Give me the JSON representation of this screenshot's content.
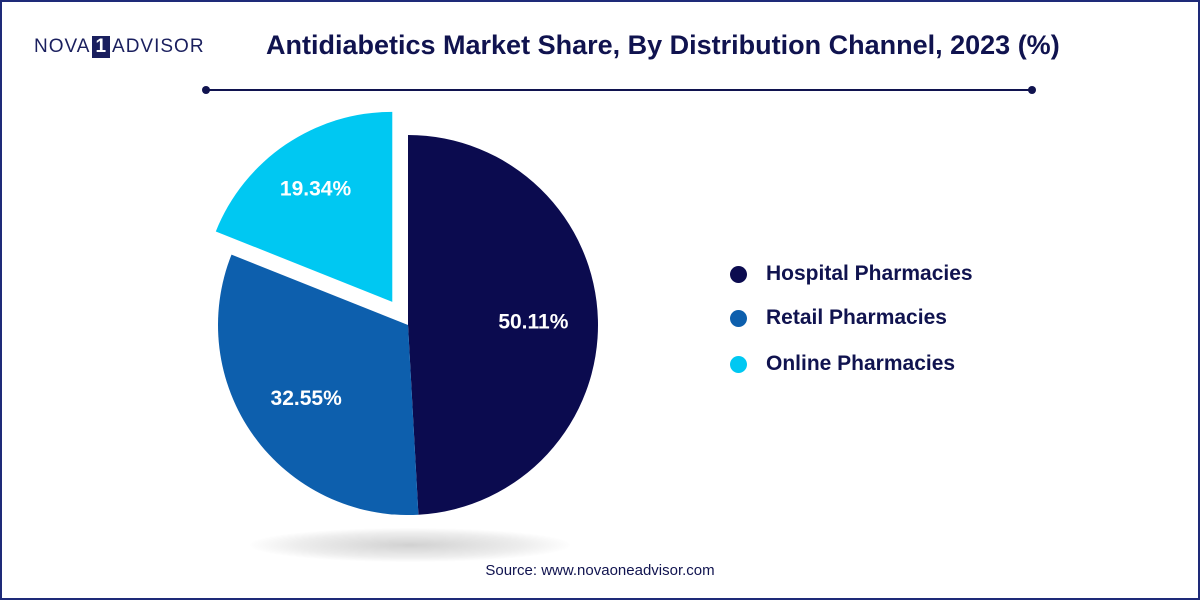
{
  "brand": {
    "logo_left": "NOVA",
    "logo_mid": "1",
    "logo_right": "ADVISOR"
  },
  "colors": {
    "hospital": "#0b0b4f",
    "retail": "#0d5fad",
    "online": "#00c8f2",
    "title": "#10134f"
  },
  "chart_data": {
    "type": "pie",
    "title": "Antidiabetics Market Share, By Distribution Channel, 2023 (%)",
    "unit": "%",
    "slices": [
      {
        "name": "Hospital Pharmacies",
        "value": 50.11,
        "label": "50.11%",
        "color": "#0b0b4f"
      },
      {
        "name": "Retail Pharmacies",
        "value": 32.55,
        "label": "32.55%",
        "color": "#0d5fad"
      },
      {
        "name": "Online Pharmacies",
        "value": 19.34,
        "label": "19.34%",
        "color": "#00c8f2",
        "exploded": true
      }
    ],
    "legend_position": "right"
  },
  "footer": {
    "source": "Source: www.novaoneadvisor.com"
  }
}
